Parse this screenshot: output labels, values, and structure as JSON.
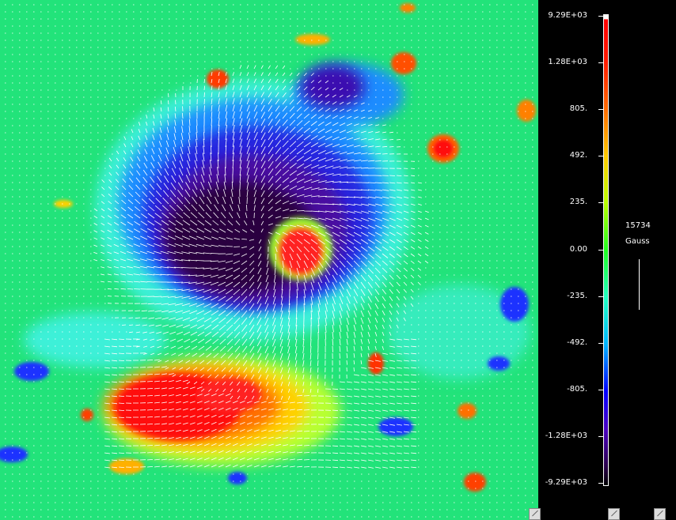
{
  "colorbar": {
    "ticks": [
      "9.29E+03",
      "1.28E+03",
      "805.",
      "492.",
      "235.",
      "0.00",
      "-235.",
      "-492.",
      "-805.",
      "-1.28E+03",
      "-9.29E+03"
    ],
    "colors": {
      "positive_strong": "#ff0000",
      "positive_mid": "#ffc800",
      "zero": "#20ff20",
      "negative_mid": "#00b4ff",
      "negative_strong": "#2a004a"
    }
  },
  "scale": {
    "value": "15734",
    "unit": "Gauss"
  },
  "icons": {
    "corner_grips": [
      "resize-grip-icon",
      "resize-grip-icon",
      "resize-grip-icon"
    ]
  }
}
